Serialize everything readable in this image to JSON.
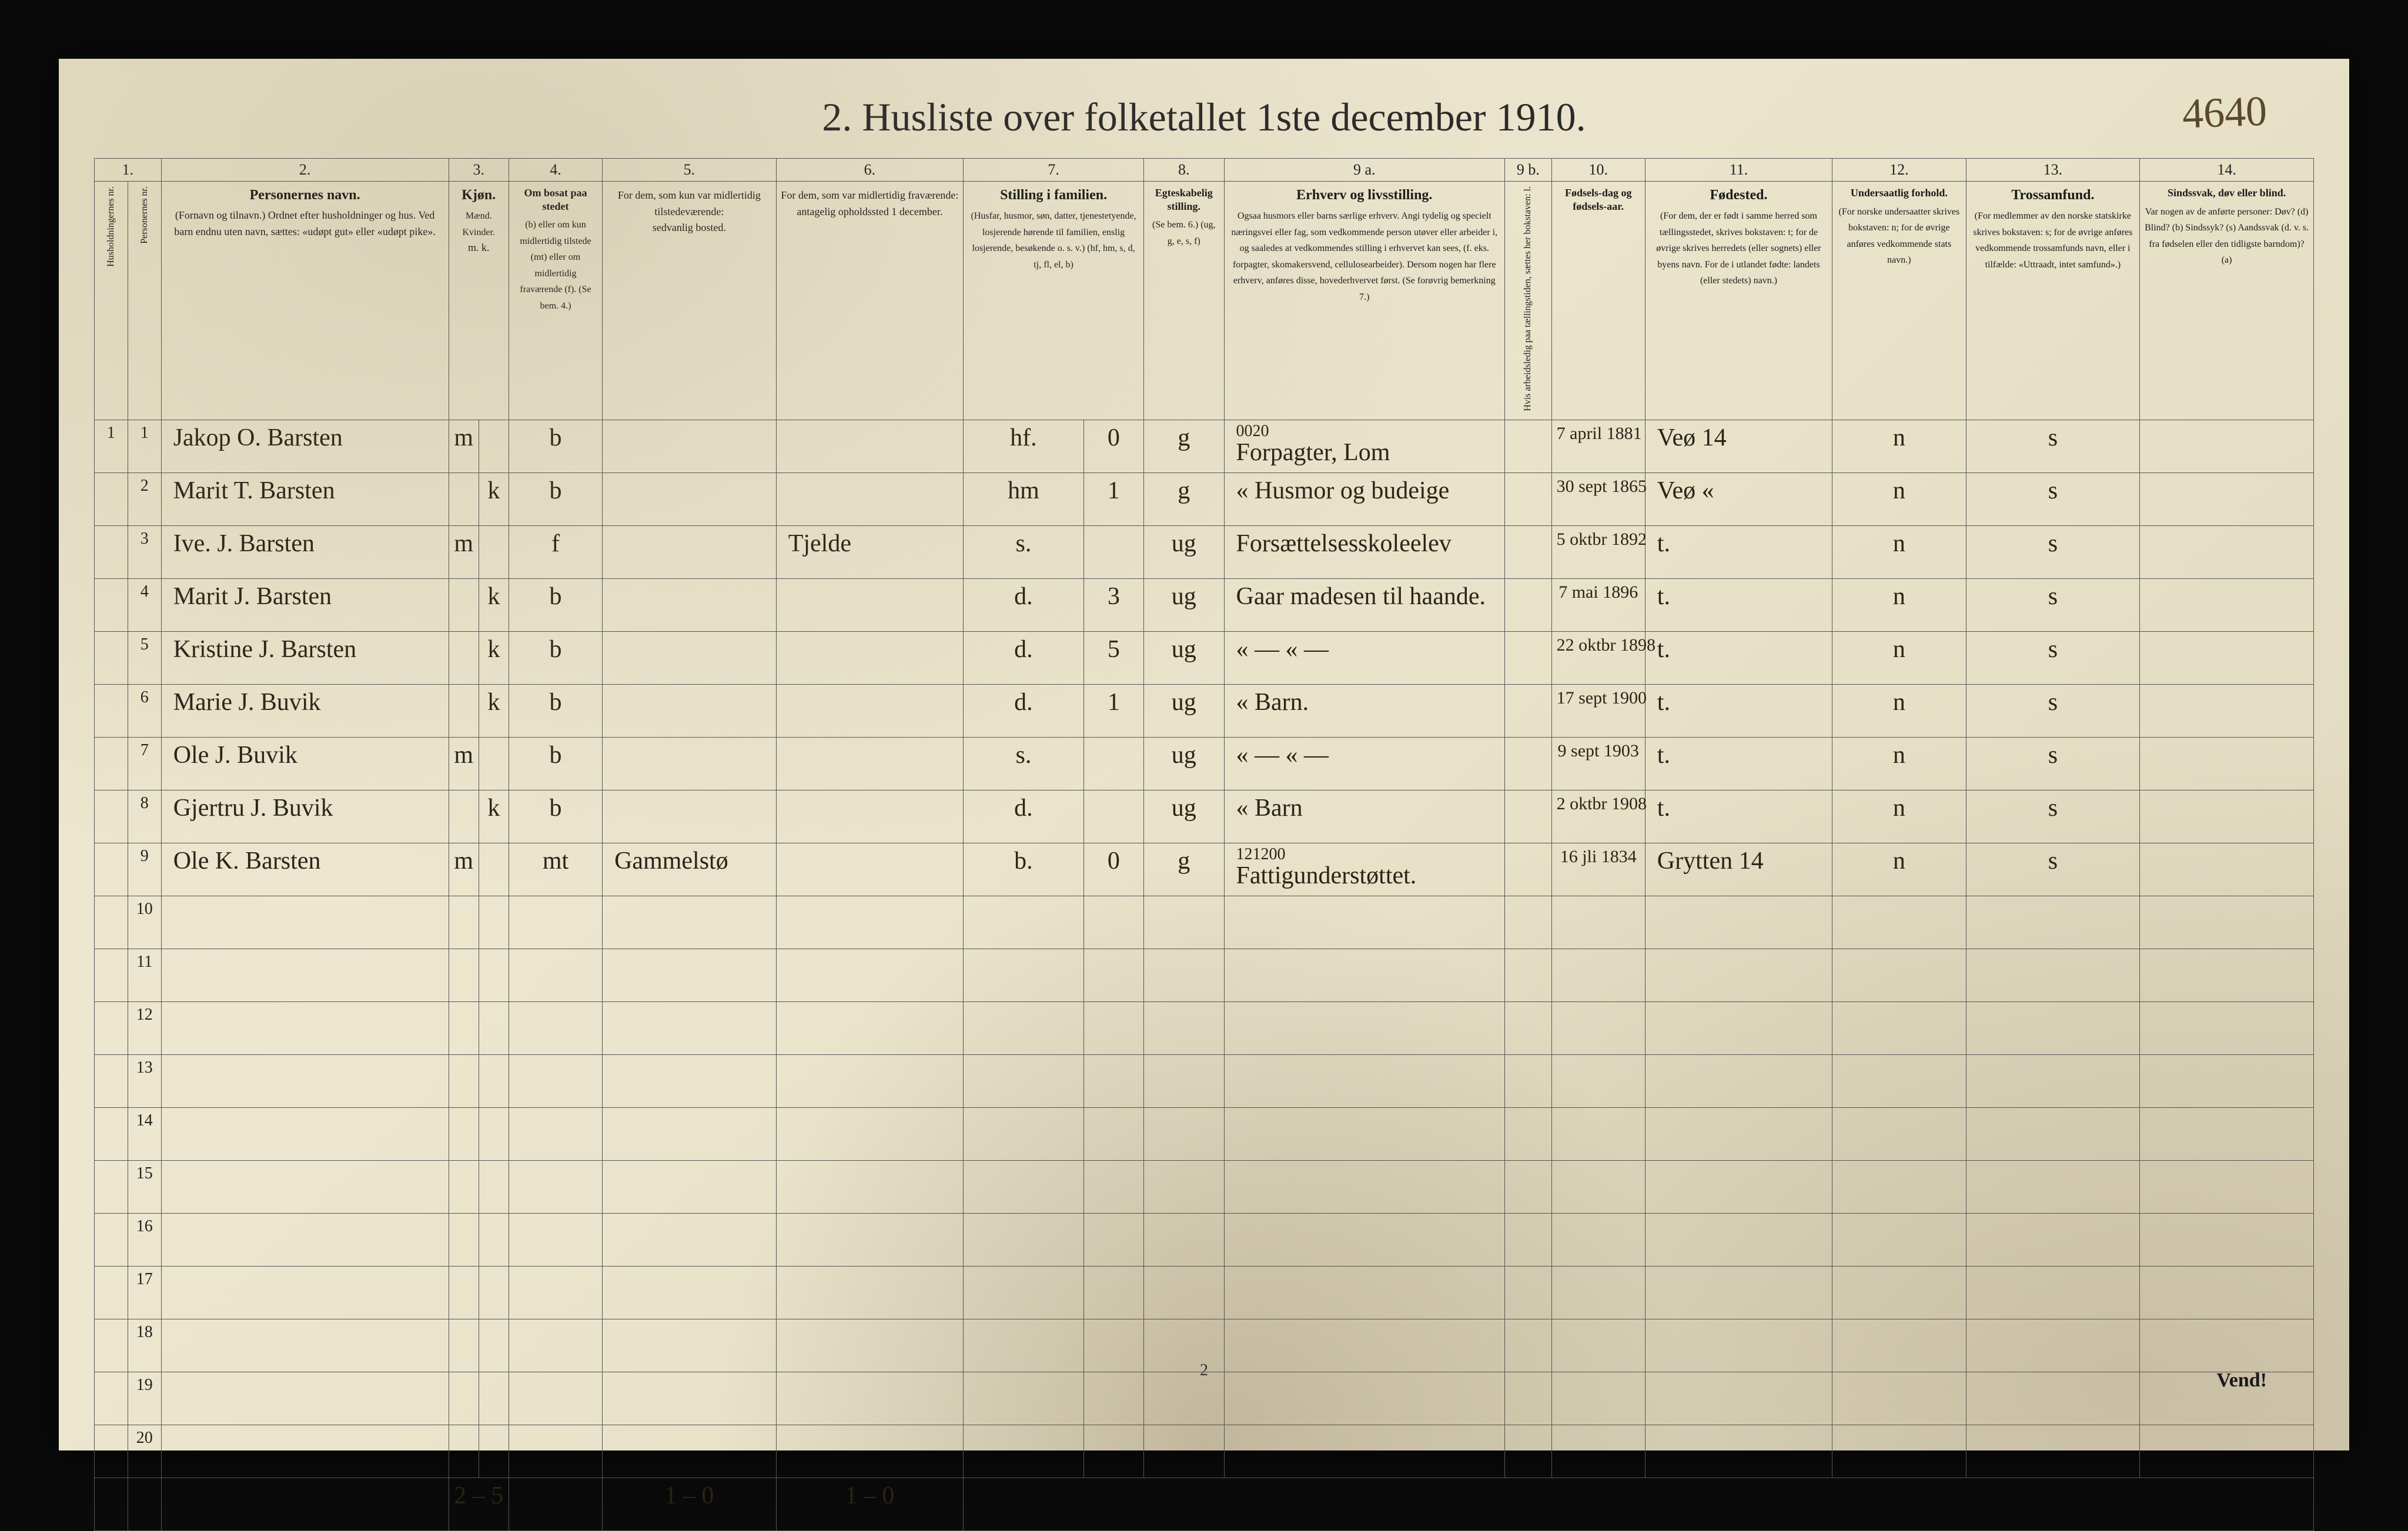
{
  "page_number_handwritten": "4640",
  "title": "2.  Husliste over folketallet 1ste december 1910.",
  "bottom_page_num": "2",
  "vend": "Vend!",
  "column_numbers": [
    "1.",
    "",
    "2.",
    "3.",
    "",
    "4.",
    "5.",
    "6.",
    "7.",
    "",
    "8.",
    "9 a.",
    "9 b.",
    "10.",
    "11.",
    "12.",
    "13.",
    "14."
  ],
  "headers": {
    "c1": "Husholdningernes nr.",
    "c2": "Personernes nr.",
    "c3_main": "Personernes navn.",
    "c3_sub": "(Fornavn og tilnavn.)\nOrdnet efter husholdninger og hus.\nVed barn endnu uten navn, sættes: «udøpt gut» eller «udøpt pike».",
    "c4_main": "Kjøn.",
    "c4_sub": "Mænd.  Kvinder.",
    "c4_mk": "m.   k.",
    "c5_main": "Om bosat paa stedet",
    "c5_sub": "(b) eller om kun midlertidig tilstede (mt) eller om midlertidig fraværende (f). (Se bem. 4.)",
    "c6_main": "For dem, som kun var midlertidig tilstedeværende:",
    "c6_sub": "sedvanlig bosted.",
    "c7_main": "For dem, som var midlertidig fraværende:",
    "c7_sub": "antagelig opholdssted 1 december.",
    "c8_main": "Stilling i familien.",
    "c8_sub": "(Husfar, husmor, søn, datter, tjenestetyende, losjerende hørende til familien, enslig losjerende, besøkende o. s. v.)\n(hf, hm, s, d, tj, fl, el, b)",
    "c9_main": "Egteskabelig stilling.",
    "c9_sub": "(Se bem. 6.)\n(ug, g, e, s, f)",
    "c10_main": "Erhverv og livsstilling.",
    "c10_sub": "Ogsaa husmors eller barns særlige erhverv. Angi tydelig og specielt næringsvei eller fag, som vedkommende person utøver eller arbeider i, og saaledes at vedkommendes stilling i erhvervet kan sees, (f. eks. forpagter, skomakersvend, cellulosearbeider). Dersom nogen har flere erhverv, anføres disse, hovederhvervet først. (Se forøvrig bemerkning 7.)",
    "c11_main": "",
    "c11_sub": "Hvis arbeidsledig paa tællingstiden, sættes her bokstaven: l.",
    "c12_main": "Fødsels-dag og fødsels-aar.",
    "c13_main": "Fødested.",
    "c13_sub": "(For dem, der er født i samme herred som tællingsstedet, skrives bokstaven: t; for de øvrige skrives herredets (eller sognets) eller byens navn. For de i utlandet fødte: landets (eller stedets) navn.)",
    "c14_main": "Undersaatlig forhold.",
    "c14_sub": "(For norske undersaatter skrives bokstaven: n; for de øvrige anføres vedkommende stats navn.)",
    "c15_main": "Trossamfund.",
    "c15_sub": "(For medlemmer av den norske statskirke skrives bokstaven: s; for de øvrige anføres vedkommende trossamfunds navn, eller i tilfælde: «Uttraadt, intet samfund».)",
    "c16_main": "Sindssvak, døv eller blind.",
    "c16_sub": "Var nogen av de anførte personer:\nDøv? (d)\nBlind? (b)\nSindssyk? (s)\nAandssvak (d. v. s. fra fødselen eller den tidligste barndom)? (a)"
  },
  "rows": [
    {
      "hh": "1",
      "pn": "1",
      "name": "Jakop O. Barsten",
      "sex": "m",
      "res": "b",
      "away": "",
      "absent": "",
      "fam": "hf.",
      "famnote": "0",
      "mar": "g",
      "occ_over": "0020",
      "occ": "Forpagter, Lom",
      "l": "",
      "dob": "7 april 1881",
      "birthplace": "Veø 14",
      "nat": "n",
      "rel": "s",
      "dis": ""
    },
    {
      "hh": "",
      "pn": "2",
      "name": "Marit T. Barsten",
      "sex": "k",
      "res": "b",
      "away": "",
      "absent": "",
      "fam": "hm",
      "famnote": "1",
      "mar": "g",
      "occ": "« Husmor og budeige",
      "l": "",
      "dob": "30 sept 1865",
      "birthplace": "Veø «",
      "nat": "n",
      "rel": "s",
      "dis": ""
    },
    {
      "hh": "",
      "pn": "3",
      "name": "Ive. J. Barsten",
      "sex": "m",
      "res": "f",
      "away": "",
      "absent": "Tjelde",
      "fam": "s.",
      "famnote": "",
      "mar": "ug",
      "occ": "Forsættelsesskoleelev",
      "l": "",
      "dob": "5 oktbr 1892",
      "birthplace": "t.",
      "nat": "n",
      "rel": "s",
      "dis": ""
    },
    {
      "hh": "",
      "pn": "4",
      "name": "Marit J. Barsten",
      "sex": "k",
      "res": "b",
      "away": "",
      "absent": "",
      "fam": "d.",
      "famnote": "3",
      "mar": "ug",
      "occ": "Gaar madesen til haande.",
      "l": "",
      "dob": "7 mai 1896",
      "birthplace": "t.",
      "nat": "n",
      "rel": "s",
      "dis": ""
    },
    {
      "hh": "",
      "pn": "5",
      "name": "Kristine J. Barsten",
      "sex": "k",
      "res": "b",
      "away": "",
      "absent": "",
      "fam": "d.",
      "famnote": "5",
      "mar": "ug",
      "occ": "«  —  « —",
      "l": "",
      "dob": "22 oktbr 1898",
      "birthplace": "t.",
      "nat": "n",
      "rel": "s",
      "dis": ""
    },
    {
      "hh": "",
      "pn": "6",
      "name": "Marie J. Buvik",
      "sex": "k",
      "res": "b",
      "away": "",
      "absent": "",
      "fam": "d.",
      "famnote": "1",
      "mar": "ug",
      "occ": "«  Barn.",
      "l": "",
      "dob": "17 sept 1900",
      "birthplace": "t.",
      "nat": "n",
      "rel": "s",
      "dis": ""
    },
    {
      "hh": "",
      "pn": "7",
      "name": "Ole J. Buvik",
      "sex": "m",
      "res": "b",
      "away": "",
      "absent": "",
      "fam": "s.",
      "famnote": "",
      "mar": "ug",
      "occ": "«  — « —",
      "l": "",
      "dob": "9 sept 1903",
      "birthplace": "t.",
      "nat": "n",
      "rel": "s",
      "dis": ""
    },
    {
      "hh": "",
      "pn": "8",
      "name": "Gjertru J. Buvik",
      "sex": "k",
      "res": "b",
      "away": "",
      "absent": "",
      "fam": "d.",
      "famnote": "",
      "mar": "ug",
      "occ": "«  Barn",
      "l": "",
      "dob": "2 oktbr 1908",
      "birthplace": "t.",
      "nat": "n",
      "rel": "s",
      "dis": ""
    },
    {
      "hh": "",
      "pn": "9",
      "name": "Ole K. Barsten",
      "sex": "m",
      "res": "mt",
      "away": "Gammelstø",
      "absent": "",
      "fam": "b.",
      "famnote": "0",
      "mar": "g",
      "occ_over": "121200",
      "occ": "Fattigunderstøttet.",
      "l": "",
      "dob": "16 jli 1834",
      "birthplace": "Grytten 14",
      "nat": "n",
      "rel": "s",
      "dis": ""
    }
  ],
  "footer_counts": {
    "mk": "2 – 5",
    "away": "1 – 0",
    "absent": "1 – 0"
  },
  "empty_rows": [
    10,
    11,
    12,
    13,
    14,
    15,
    16,
    17,
    18,
    19,
    20
  ],
  "colors": {
    "paper": "#e8e2c8",
    "ink": "#2a2418",
    "rule": "#555555",
    "background": "#0a0a0a"
  }
}
